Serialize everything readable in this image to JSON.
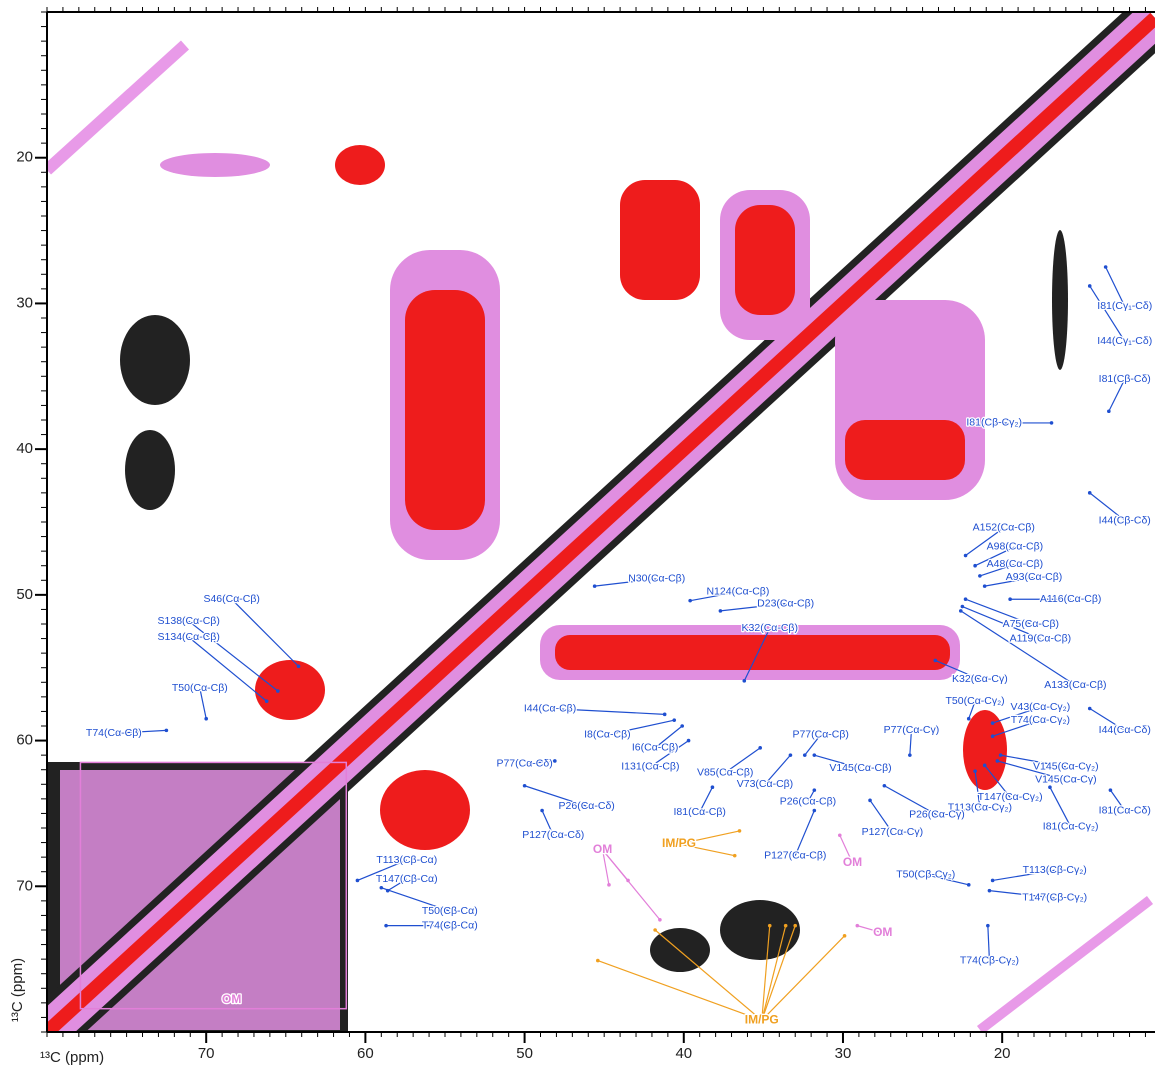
{
  "chart_data": {
    "type": "spectrum2d",
    "xlabel": "¹³C (ppm)",
    "ylabel": "¹³C (ppm)",
    "xlim": [
      80,
      10.4
    ],
    "ylim": [
      10,
      80
    ],
    "xticks": [
      20,
      30,
      40,
      50,
      60,
      70
    ],
    "yticks": [
      20,
      30,
      40,
      50,
      60,
      70
    ],
    "minor_tick_step": 1,
    "annotation_groups": [
      {
        "color": "#1f4fd0",
        "items": [
          {
            "text": "I81(Cγ₁-Cδ)",
            "text_xy": [
              12.3,
              30.2
            ],
            "points": [
              [
                13.5,
                27.5
              ]
            ]
          },
          {
            "text": "I44(Cγ₁-Cδ)",
            "text_xy": [
              12.3,
              32.6
            ],
            "points": [
              [
                14.5,
                28.8
              ]
            ]
          },
          {
            "text": "I81(Cβ-Cδ)",
            "text_xy": [
              12.3,
              35.2
            ],
            "points": [
              [
                13.3,
                37.4
              ]
            ]
          },
          {
            "text": "I81(Cβ-Cγ₂)",
            "text_xy": [
              20.5,
              38.2
            ],
            "points": [
              [
                16.9,
                38.2
              ]
            ]
          },
          {
            "text": "I44(Cβ-Cδ)",
            "text_xy": [
              12.3,
              44.9
            ],
            "points": [
              [
                14.5,
                43.0
              ]
            ]
          },
          {
            "text": "A152(Cα-Cβ)",
            "text_xy": [
              19.9,
              45.4
            ],
            "points": [
              [
                22.3,
                47.3
              ]
            ]
          },
          {
            "text": "A98(Cα-Cβ)",
            "text_xy": [
              19.2,
              46.7
            ],
            "points": [
              [
                21.7,
                48.0
              ]
            ]
          },
          {
            "text": "A48(Cα-Cβ)",
            "text_xy": [
              19.2,
              47.9
            ],
            "points": [
              [
                21.4,
                48.7
              ]
            ]
          },
          {
            "text": "A93(Cα-Cβ)",
            "text_xy": [
              18.0,
              48.8
            ],
            "points": [
              [
                21.1,
                49.4
              ]
            ]
          },
          {
            "text": "A116(Cα-Cβ)",
            "text_xy": [
              15.7,
              50.3
            ],
            "points": [
              [
                19.5,
                50.3
              ]
            ]
          },
          {
            "text": "A75(Cα-Cβ)",
            "text_xy": [
              18.2,
              52.0
            ],
            "points": [
              [
                22.3,
                50.3
              ]
            ]
          },
          {
            "text": "A119(Cα-Cβ)",
            "text_xy": [
              17.6,
              53.0
            ],
            "points": [
              [
                22.5,
                50.8
              ]
            ]
          },
          {
            "text": "A133(Cα-Cβ)",
            "text_xy": [
              15.4,
              56.2
            ],
            "points": [
              [
                22.6,
                51.1
              ]
            ]
          },
          {
            "text": "K32(Cα-Cγ)",
            "text_xy": [
              21.4,
              55.8
            ],
            "points": [
              [
                24.2,
                54.5
              ]
            ]
          },
          {
            "text": "T50(Cα-Cγ₂)",
            "text_xy": [
              21.7,
              57.3
            ],
            "points": [
              [
                22.1,
                58.5
              ]
            ]
          },
          {
            "text": "V43(Cα-Cγ₂)",
            "text_xy": [
              17.6,
              57.7
            ],
            "points": [
              [
                20.6,
                58.8
              ]
            ]
          },
          {
            "text": "T74(Cα-Cγ₂)",
            "text_xy": [
              17.6,
              58.6
            ],
            "points": [
              [
                20.6,
                59.7
              ]
            ]
          },
          {
            "text": "I44(Cα-Cδ)",
            "text_xy": [
              12.3,
              59.3
            ],
            "points": [
              [
                14.5,
                57.8
              ]
            ]
          },
          {
            "text": "V145(Cα-Cγ₂)",
            "text_xy": [
              16.0,
              61.8
            ],
            "points": [
              [
                20.1,
                61.0
              ]
            ]
          },
          {
            "text": "V145(Cα-Cγ)",
            "text_xy": [
              16.0,
              62.7
            ],
            "points": [
              [
                20.3,
                61.4
              ]
            ]
          },
          {
            "text": "T147(Cα-Cγ₂)",
            "text_xy": [
              19.5,
              63.9
            ],
            "points": [
              [
                21.1,
                61.7
              ]
            ]
          },
          {
            "text": "T113(Cα-Cγ₂)",
            "text_xy": [
              21.4,
              64.6
            ],
            "points": [
              [
                21.7,
                62.1
              ]
            ]
          },
          {
            "text": "I81(Cα-Cγ₂)",
            "text_xy": [
              15.7,
              65.9
            ],
            "points": [
              [
                17.0,
                63.2
              ]
            ]
          },
          {
            "text": "I81(Cα-Cδ)",
            "text_xy": [
              12.3,
              64.8
            ],
            "points": [
              [
                13.2,
                63.4
              ]
            ]
          },
          {
            "text": "P77(Cα-Cγ)",
            "text_xy": [
              25.7,
              59.3
            ],
            "points": [
              [
                25.8,
                61.0
              ]
            ]
          },
          {
            "text": "P26(Cα-Cγ)",
            "text_xy": [
              24.1,
              65.1
            ],
            "points": [
              [
                27.4,
                63.1
              ]
            ]
          },
          {
            "text": "P127(Cα-Cγ)",
            "text_xy": [
              26.9,
              66.3
            ],
            "points": [
              [
                28.3,
                64.1
              ]
            ]
          },
          {
            "text": "V145(Cα-Cβ)",
            "text_xy": [
              28.9,
              61.9
            ],
            "points": [
              [
                31.8,
                61.0
              ]
            ]
          },
          {
            "text": "P77(Cα-Cβ)",
            "text_xy": [
              31.4,
              59.6
            ],
            "points": [
              [
                32.4,
                61.0
              ]
            ]
          },
          {
            "text": "V73(Cα-Cβ)",
            "text_xy": [
              34.9,
              63.0
            ],
            "points": [
              [
                33.3,
                61.0
              ]
            ]
          },
          {
            "text": "V85(Cα-Cβ)",
            "text_xy": [
              37.4,
              62.2
            ],
            "points": [
              [
                35.2,
                60.5
              ]
            ]
          },
          {
            "text": "P26(Cα-Cβ)",
            "text_xy": [
              32.2,
              64.2
            ],
            "points": [
              [
                31.8,
                63.4
              ]
            ]
          },
          {
            "text": "P127(Cα-Cβ)",
            "text_xy": [
              33.0,
              67.9
            ],
            "points": [
              [
                31.8,
                64.8
              ]
            ]
          },
          {
            "text": "I81(Cα-Cβ)",
            "text_xy": [
              39.0,
              64.9
            ],
            "points": [
              [
                38.2,
                63.2
              ]
            ]
          },
          {
            "text": "I131(Cα-Cβ)",
            "text_xy": [
              42.1,
              61.8
            ],
            "points": [
              [
                39.7,
                60.0
              ]
            ]
          },
          {
            "text": "I6(Cα-Cβ)",
            "text_xy": [
              41.8,
              60.5
            ],
            "points": [
              [
                40.1,
                59.0
              ]
            ]
          },
          {
            "text": "I8(Cα-Cβ)",
            "text_xy": [
              44.8,
              59.6
            ],
            "points": [
              [
                40.6,
                58.6
              ]
            ]
          },
          {
            "text": "I44(Cα-Cβ)",
            "text_xy": [
              48.4,
              57.8
            ],
            "points": [
              [
                41.2,
                58.2
              ]
            ]
          },
          {
            "text": "K32(Cα-Cβ)",
            "text_xy": [
              34.6,
              52.3
            ],
            "points": [
              [
                36.2,
                55.9
              ]
            ]
          },
          {
            "text": "D23(Cα-Cβ)",
            "text_xy": [
              33.6,
              50.6
            ],
            "points": [
              [
                37.7,
                51.1
              ]
            ]
          },
          {
            "text": "N124(Cα-Cβ)",
            "text_xy": [
              36.6,
              49.8
            ],
            "points": [
              [
                39.6,
                50.4
              ]
            ]
          },
          {
            "text": "N30(Cα-Cβ)",
            "text_xy": [
              41.7,
              48.9
            ],
            "points": [
              [
                45.6,
                49.4
              ]
            ]
          },
          {
            "text": "P77(Cα-Cδ)",
            "text_xy": [
              50.0,
              61.6
            ],
            "points": [
              [
                48.1,
                61.4
              ]
            ]
          },
          {
            "text": "P26(Cα-Cδ)",
            "text_xy": [
              46.1,
              64.5
            ],
            "points": [
              [
                50.0,
                63.1
              ]
            ]
          },
          {
            "text": "P127(Cα-Cδ)",
            "text_xy": [
              48.2,
              66.5
            ],
            "points": [
              [
                48.9,
                64.8
              ]
            ]
          },
          {
            "text": "S46(Cα-Cβ)",
            "text_xy": [
              68.4,
              50.3
            ],
            "points": [
              [
                64.2,
                54.9
              ]
            ]
          },
          {
            "text": "S138(Cα-Cβ)",
            "text_xy": [
              71.1,
              51.8
            ],
            "points": [
              [
                65.5,
                56.6
              ]
            ]
          },
          {
            "text": "S134(Cα-Cβ)",
            "text_xy": [
              71.1,
              52.9
            ],
            "points": [
              [
                66.2,
                57.3
              ]
            ]
          },
          {
            "text": "T50(Cα-Cβ)",
            "text_xy": [
              70.4,
              56.4
            ],
            "points": [
              [
                70.0,
                58.5
              ]
            ]
          },
          {
            "text": "T74(Cα-Cβ)",
            "text_xy": [
              75.8,
              59.5
            ],
            "points": [
              [
                72.5,
                59.3
              ]
            ]
          },
          {
            "text": "T113(Cβ-Cα)",
            "text_xy": [
              57.4,
              68.2
            ],
            "points": [
              [
                60.5,
                69.6
              ]
            ]
          },
          {
            "text": "T147(Cβ-Cα)",
            "text_xy": [
              57.4,
              69.5
            ],
            "points": [
              [
                58.6,
                70.3
              ]
            ]
          },
          {
            "text": "T50(Cβ-Cα)",
            "text_xy": [
              54.7,
              71.7
            ],
            "points": [
              [
                59.0,
                70.1
              ]
            ]
          },
          {
            "text": "T74(Cβ-Cα)",
            "text_xy": [
              54.7,
              72.7
            ],
            "points": [
              [
                58.7,
                72.7
              ]
            ]
          },
          {
            "text": "T113(Cβ-Cγ₂)",
            "text_xy": [
              16.7,
              68.9
            ],
            "points": [
              [
                20.6,
                69.6
              ]
            ]
          },
          {
            "text": "T50(Cβ-Cγ₂)",
            "text_xy": [
              24.8,
              69.2
            ],
            "points": [
              [
                22.1,
                69.9
              ]
            ]
          },
          {
            "text": "T147(Cβ-Cγ₂)",
            "text_xy": [
              16.7,
              70.8
            ],
            "points": [
              [
                20.8,
                70.3
              ]
            ]
          },
          {
            "text": "T74(Cβ-Cγ₂)",
            "text_xy": [
              20.8,
              75.1
            ],
            "points": [
              [
                20.9,
                72.7
              ]
            ]
          }
        ]
      },
      {
        "color": "#e27fd9",
        "items": [
          {
            "text": "OM",
            "text_xy": [
              45.1,
              67.5
            ],
            "points": [
              [
                44.7,
                69.9
              ],
              [
                43.5,
                69.6
              ],
              [
                41.5,
                72.3
              ]
            ]
          },
          {
            "text": "OM",
            "text_xy": [
              29.4,
              68.4
            ],
            "points": [
              [
                30.2,
                66.5
              ]
            ]
          },
          {
            "text": "OM",
            "text_xy": [
              27.5,
              73.2
            ],
            "points": [
              [
                29.1,
                72.7
              ]
            ]
          },
          {
            "text": "OM",
            "text_xy": [
              68.4,
              77.8
            ],
            "points": [],
            "box": [
              [
                77.9,
                61.5
              ],
              [
                61.2,
                78.4
              ]
            ]
          }
        ]
      },
      {
        "color": "#f0a020",
        "items": [
          {
            "text": "IM/PG",
            "text_xy": [
              40.3,
              67.1
            ],
            "points": [
              [
                36.8,
                67.9
              ],
              [
                36.5,
                66.2
              ]
            ]
          },
          {
            "text": "IM/PG",
            "text_xy": [
              35.1,
              79.2
            ],
            "points": [
              [
                45.4,
                75.1
              ],
              [
                41.8,
                73.0
              ],
              [
                34.6,
                72.7
              ],
              [
                33.6,
                72.7
              ],
              [
                33.0,
                72.7
              ],
              [
                29.9,
                73.4
              ]
            ]
          }
        ]
      }
    ]
  }
}
